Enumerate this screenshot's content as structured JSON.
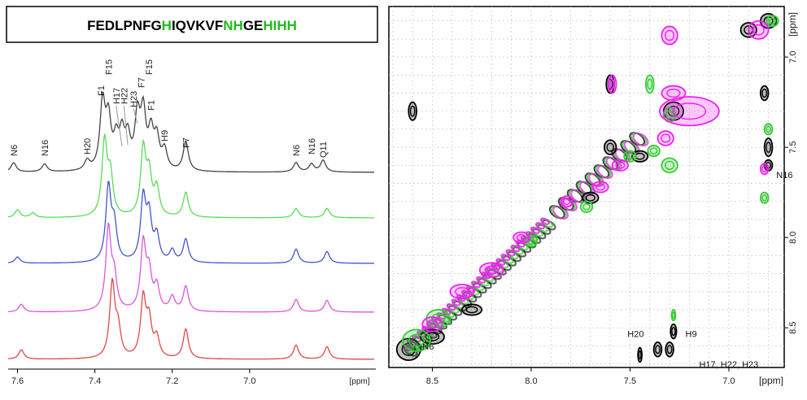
{
  "sequence": {
    "segments": [
      {
        "text": "FEDLPNFG",
        "color": "#000000"
      },
      {
        "text": "H",
        "color": "#22bb22"
      },
      {
        "text": "IQVKVF",
        "color": "#000000"
      },
      {
        "text": "NH",
        "color": "#22bb22"
      },
      {
        "text": "GE",
        "color": "#000000"
      },
      {
        "text": "HI",
        "color": "#22bb22"
      },
      {
        "text": "HH",
        "color": "#22bb22"
      }
    ]
  },
  "chart_data": [
    {
      "type": "line",
      "xlabel": "[ppm]",
      "xlim": [
        7.62,
        6.72
      ],
      "x_ticks": [
        "7.6",
        "7.4",
        "7.2",
        "7.0",
        "[ppm]"
      ],
      "x_tick_values": [
        7.6,
        7.4,
        7.2,
        7.0
      ],
      "series": [
        {
          "color": "#444444",
          "peaks": [
            [
              7.61,
              0.12
            ],
            [
              7.53,
              0.1
            ],
            [
              7.42,
              0.12
            ],
            [
              7.38,
              0.85
            ],
            [
              7.365,
              0.6
            ],
            [
              7.345,
              0.35
            ],
            [
              7.33,
              0.42
            ],
            [
              7.315,
              0.38
            ],
            [
              7.29,
              0.65
            ],
            [
              7.275,
              0.7
            ],
            [
              7.255,
              0.45
            ],
            [
              7.24,
              0.38
            ],
            [
              7.22,
              0.25
            ],
            [
              7.165,
              0.38
            ],
            [
              6.88,
              0.12
            ],
            [
              6.84,
              0.1
            ],
            [
              6.81,
              0.15
            ]
          ]
        },
        {
          "color": "#55dd55",
          "peaks": [
            [
              7.6,
              0.1
            ],
            [
              7.56,
              0.06
            ],
            [
              7.375,
              0.95
            ],
            [
              7.36,
              0.5
            ],
            [
              7.275,
              0.85
            ],
            [
              7.26,
              0.5
            ],
            [
              7.24,
              0.35
            ],
            [
              7.165,
              0.32
            ],
            [
              6.88,
              0.12
            ],
            [
              6.8,
              0.12
            ]
          ]
        },
        {
          "color": "#4455cc",
          "peaks": [
            [
              7.6,
              0.08
            ],
            [
              7.365,
              0.95
            ],
            [
              7.35,
              0.45
            ],
            [
              7.275,
              0.8
            ],
            [
              7.26,
              0.55
            ],
            [
              7.24,
              0.32
            ],
            [
              7.2,
              0.15
            ],
            [
              7.165,
              0.3
            ],
            [
              6.88,
              0.18
            ],
            [
              6.8,
              0.15
            ]
          ]
        },
        {
          "color": "#dd55dd",
          "peaks": [
            [
              7.59,
              0.1
            ],
            [
              7.365,
              1.05
            ],
            [
              7.35,
              0.4
            ],
            [
              7.275,
              0.85
            ],
            [
              7.26,
              0.45
            ],
            [
              7.24,
              0.3
            ],
            [
              7.2,
              0.18
            ],
            [
              7.165,
              0.32
            ],
            [
              6.88,
              0.16
            ],
            [
              6.8,
              0.15
            ]
          ]
        },
        {
          "color": "#e04848",
          "peaks": [
            [
              7.59,
              0.12
            ],
            [
              7.355,
              0.95
            ],
            [
              7.34,
              0.35
            ],
            [
              7.275,
              0.75
            ],
            [
              7.26,
              0.45
            ],
            [
              7.24,
              0.25
            ],
            [
              7.165,
              0.38
            ],
            [
              6.88,
              0.18
            ],
            [
              6.8,
              0.16
            ]
          ]
        }
      ],
      "peak_labels": [
        {
          "text": "N6",
          "ppm": 7.61
        },
        {
          "text": "N16",
          "ppm": 7.53
        },
        {
          "text": "H20",
          "ppm": 7.42
        },
        {
          "text": "F1",
          "ppm": 7.385
        },
        {
          "text": "F15",
          "ppm": 7.365
        },
        {
          "text": "H17",
          "ppm": 7.345
        },
        {
          "text": "H22",
          "ppm": 7.325
        },
        {
          "text": "H23",
          "ppm": 7.3
        },
        {
          "text": "F7",
          "ppm": 7.28
        },
        {
          "text": "F15",
          "ppm": 7.26
        },
        {
          "text": "F1",
          "ppm": 7.255
        },
        {
          "text": "H9",
          "ppm": 7.22
        },
        {
          "text": "F7",
          "ppm": 7.165
        },
        {
          "text": "N6",
          "ppm": 6.88
        },
        {
          "text": "N16",
          "ppm": 6.84
        },
        {
          "text": "Q11",
          "ppm": 6.81
        }
      ]
    },
    {
      "type": "scatter",
      "xlabel": "[ppm]",
      "ylabel": "[ppm]",
      "xlim": [
        8.72,
        6.72
      ],
      "ylim": [
        6.72,
        8.72
      ],
      "grid": true,
      "x_ticks": [
        "8.5",
        "8.0",
        "7.5",
        "7.0",
        "[ppm]"
      ],
      "x_tick_values": [
        8.5,
        8.0,
        7.5,
        7.0
      ],
      "y_ticks": [
        "[ppm]",
        "7.0",
        "7.5",
        "8.0",
        "8.5"
      ],
      "y_tick_values": [
        7.0,
        7.5,
        8.0,
        8.5
      ],
      "layers": [
        {
          "color": "#000000",
          "blobs": [
            [
              6.8,
              6.8,
              0.04,
              0.04
            ],
            [
              6.9,
              6.85,
              0.04,
              0.04
            ],
            [
              7.28,
              7.3,
              0.05,
              0.05
            ],
            [
              7.6,
              7.15,
              0.02,
              0.05
            ],
            [
              7.6,
              7.5,
              0.03,
              0.04
            ],
            [
              8.6,
              7.3,
              0.02,
              0.05
            ],
            [
              8.62,
              8.62,
              0.06,
              0.06
            ],
            [
              8.5,
              8.55,
              0.06,
              0.04
            ],
            [
              8.3,
              8.4,
              0.05,
              0.03
            ],
            [
              7.7,
              7.78,
              0.04,
              0.03
            ],
            [
              7.45,
              7.55,
              0.04,
              0.03
            ],
            [
              6.8,
              7.5,
              0.02,
              0.05
            ],
            [
              7.45,
              8.65,
              0.01,
              0.04
            ],
            [
              7.36,
              8.62,
              0.02,
              0.04
            ],
            [
              7.3,
              8.62,
              0.02,
              0.04
            ],
            [
              7.28,
              8.52,
              0.015,
              0.04
            ],
            [
              6.82,
              7.2,
              0.02,
              0.04
            ],
            [
              6.8,
              7.6,
              0.02,
              0.03
            ]
          ]
        },
        {
          "color": "#33cc33",
          "blobs": [
            [
              8.58,
              8.57,
              0.07,
              0.06
            ],
            [
              8.47,
              8.45,
              0.06,
              0.05
            ],
            [
              8.0,
              8.02,
              0.03,
              0.03
            ],
            [
              7.72,
              7.83,
              0.03,
              0.03
            ],
            [
              7.5,
              7.55,
              0.03,
              0.03
            ],
            [
              7.38,
              7.52,
              0.03,
              0.03
            ],
            [
              7.3,
              7.32,
              0.03,
              0.04
            ],
            [
              7.4,
              7.15,
              0.02,
              0.05
            ],
            [
              6.78,
              6.8,
              0.03,
              0.03
            ],
            [
              6.8,
              7.4,
              0.02,
              0.03
            ],
            [
              6.82,
              7.78,
              0.02,
              0.03
            ],
            [
              7.28,
              8.43,
              0.01,
              0.03
            ],
            [
              7.3,
              7.6,
              0.04,
              0.04
            ]
          ]
        },
        {
          "color": "#ee22ee",
          "blobs": [
            [
              6.85,
              6.85,
              0.05,
              0.05
            ],
            [
              7.3,
              6.88,
              0.04,
              0.05
            ],
            [
              7.59,
              7.15,
              0.02,
              0.05
            ],
            [
              7.2,
              7.3,
              0.15,
              0.08
            ],
            [
              7.28,
              7.2,
              0.06,
              0.04
            ],
            [
              7.32,
              7.45,
              0.04,
              0.04
            ],
            [
              7.55,
              7.6,
              0.04,
              0.03
            ],
            [
              7.65,
              7.72,
              0.04,
              0.03
            ],
            [
              7.82,
              7.8,
              0.03,
              0.03
            ],
            [
              8.05,
              8.0,
              0.04,
              0.03
            ],
            [
              8.2,
              8.18,
              0.06,
              0.04
            ],
            [
              8.35,
              8.3,
              0.06,
              0.04
            ],
            [
              8.5,
              8.48,
              0.05,
              0.04
            ],
            [
              6.82,
              7.62,
              0.02,
              0.03
            ]
          ]
        }
      ],
      "annotations": [
        {
          "text": "N16",
          "x": 6.76,
          "y": 7.67
        },
        {
          "text": "H20",
          "x": 7.43,
          "y": 8.55
        },
        {
          "text": "H9",
          "x": 7.22,
          "y": 8.55
        },
        {
          "text": "H17, H22, H23",
          "x": 7.15,
          "y": 8.72
        },
        {
          "text": "N6",
          "x": 8.55,
          "y": 8.62
        }
      ]
    }
  ]
}
